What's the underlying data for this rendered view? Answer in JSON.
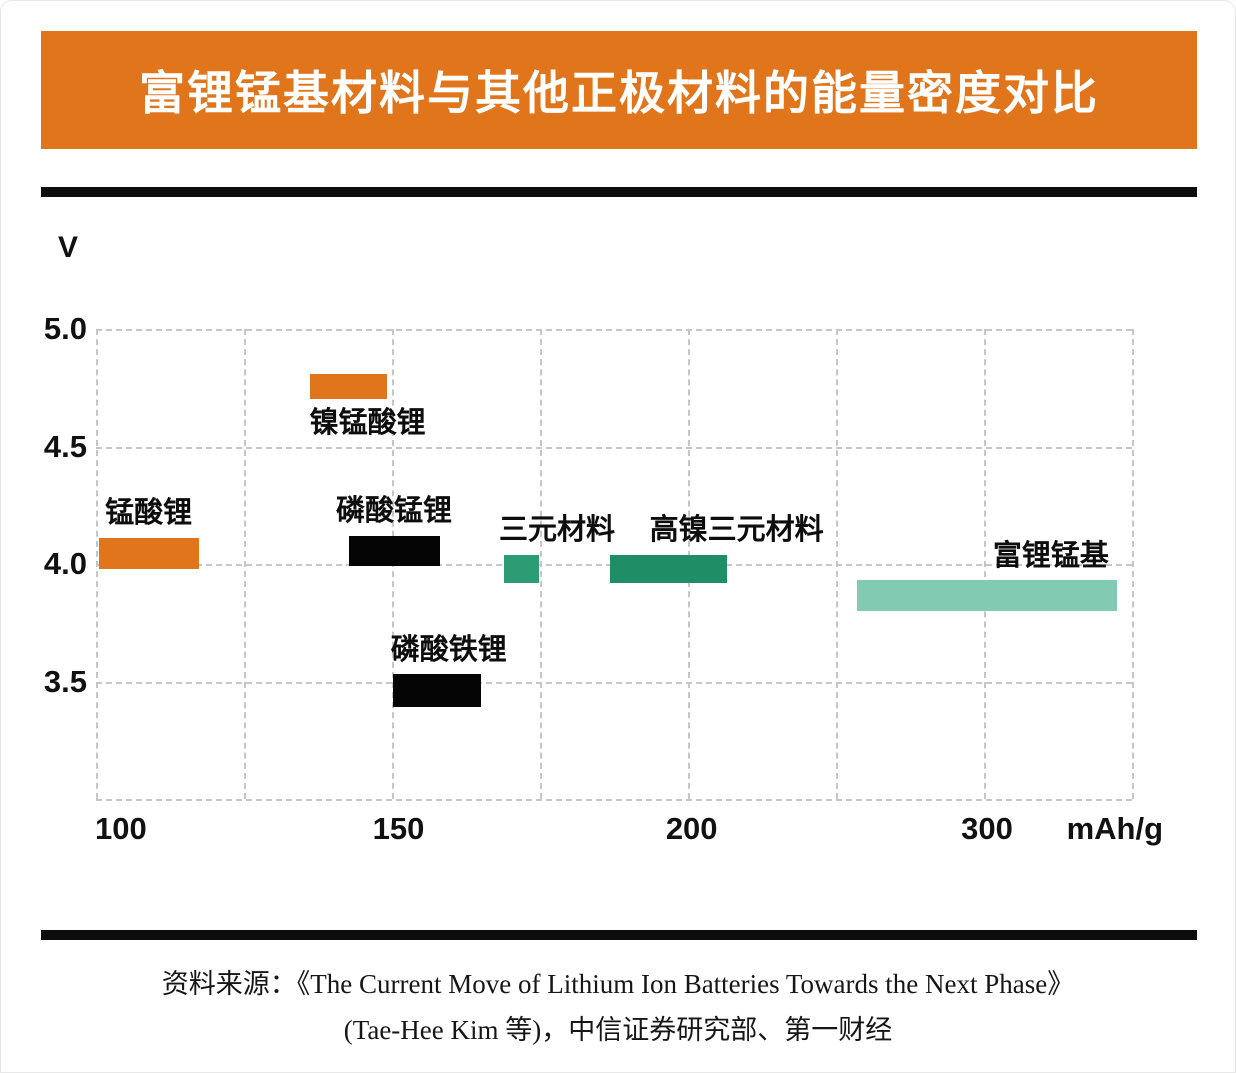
{
  "header": {
    "title": "富锂锰基材料与其他正极材料的能量密度对比"
  },
  "colors": {
    "banner": "#E0751C",
    "rule": "#0d0d0d"
  },
  "chart_data": {
    "type": "bar",
    "title": "富锂锰基材料与其他正极材料的能量密度对比",
    "xlabel": "mAh/g",
    "ylabel": "V",
    "grid": "dashed",
    "x_axis": {
      "unit": "mAh/g",
      "gridline_count": 8,
      "ticks": [
        {
          "value": 100,
          "frac": 0.024
        },
        {
          "value": 150,
          "frac": 0.292
        },
        {
          "value": 200,
          "frac": 0.575
        },
        {
          "value": 300,
          "frac": 0.86
        }
      ]
    },
    "y_axis": {
      "unit": "V",
      "min": 3.0,
      "max": 5.0,
      "tick_values": [
        5.0,
        4.5,
        4.0,
        3.5
      ],
      "grid_values": [
        5.0,
        4.5,
        4.0,
        3.5,
        3.0
      ]
    },
    "series": [
      {
        "name": "锰酸锂",
        "x_range_mAh_g": [
          96,
          114
        ],
        "y_range_V": [
          3.98,
          4.11
        ],
        "color": "#E0751C",
        "label_position": "above",
        "label_align": "center",
        "label_dx": 0
      },
      {
        "name": "镍锰酸锂",
        "x_range_mAh_g": [
          134,
          148
        ],
        "y_range_V": [
          4.7,
          4.81
        ],
        "color": "#E0751C",
        "label_position": "below",
        "label_align": "left",
        "label_dx": 0
      },
      {
        "name": "磷酸锰锂",
        "x_range_mAh_g": [
          141,
          157
        ],
        "y_range_V": [
          3.99,
          4.12
        ],
        "color": "#050505",
        "label_position": "above",
        "label_align": "center",
        "label_dx": 0
      },
      {
        "name": "磷酸铁锂",
        "x_range_mAh_g": [
          149,
          164
        ],
        "y_range_V": [
          3.39,
          3.53
        ],
        "color": "#050505",
        "label_position": "above",
        "label_align": "center",
        "label_dx": 12
      },
      {
        "name": "三元材料",
        "x_range_mAh_g": [
          168,
          174
        ],
        "y_range_V": [
          3.92,
          4.04
        ],
        "color": "#2C9C74",
        "label_position": "above",
        "label_align": "left",
        "label_dx": -5
      },
      {
        "name": "高镍三元材料",
        "x_range_mAh_g": [
          186,
          212
        ],
        "y_range_V": [
          3.92,
          4.04
        ],
        "color": "#1F8E67",
        "label_position": "above",
        "label_align": "left",
        "label_dx": 40
      },
      {
        "name": "富锂锰基",
        "x_range_mAh_g": [
          256,
          344
        ],
        "y_range_V": [
          3.8,
          3.93
        ],
        "color": "#82CBB2",
        "label_position": "above",
        "label_align": "right",
        "label_dx": -8
      }
    ]
  },
  "footer": {
    "source_label": "资料来源：",
    "line1": "资料来源：《The Current Move of Lithium Ion Batteries Towards the Next Phase》",
    "line2": "(Tae-Hee Kim 等)，中信证券研究部、第一财经"
  }
}
